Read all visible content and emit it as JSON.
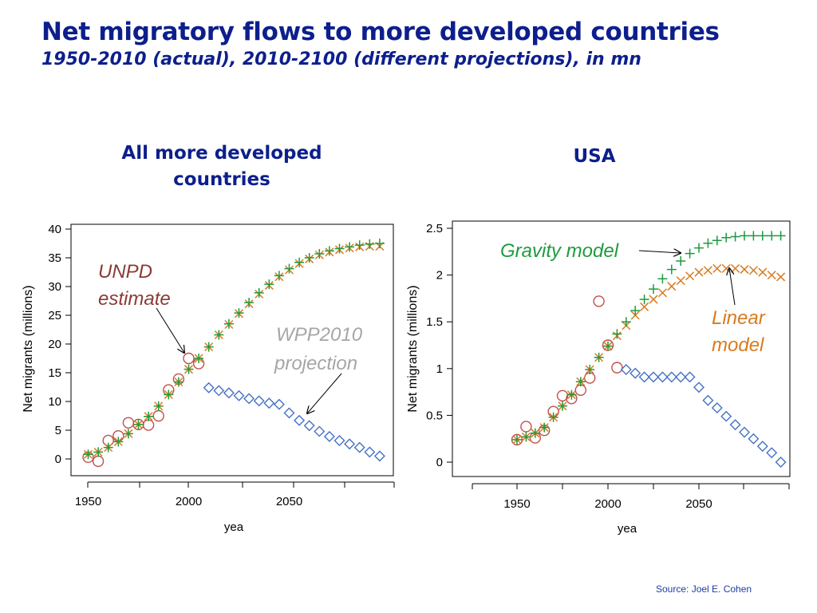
{
  "slide": {
    "title": "Net migratory flows to more developed countries",
    "subtitle": "1950-2010 (actual), 2010-2100 (different projections), in mn",
    "source": "Source: Joel E. Cohen",
    "colors": {
      "title": "#0d1f8c",
      "unpd": "#c0504d",
      "wpp": "#4472c4",
      "gravity": "#1e9b3c",
      "linear": "#d97a1e"
    }
  },
  "chart_data": [
    {
      "type": "scatter",
      "title": "All more developed countries",
      "xlabel": "yea",
      "ylabel": "Net migrants (millions)",
      "xlim": [
        1945,
        2097
      ],
      "ylim": [
        0,
        40
      ],
      "xticks": [
        1950,
        2000,
        2050
      ],
      "yticks": [
        0,
        5,
        10,
        15,
        20,
        25,
        30,
        35,
        40
      ],
      "annotations": [
        {
          "text": "UNPD",
          "color": "#8b3a36"
        },
        {
          "text": "estimate",
          "color": "#8b3a36"
        },
        {
          "text": "WPP2010",
          "color": "#a6a6a6"
        },
        {
          "text": "projection",
          "color": "#a6a6a6"
        }
      ],
      "series": [
        {
          "marker": "circle",
          "color": "#c0504d",
          "x": [
            1950,
            1955,
            1960,
            1965,
            1970,
            1975,
            1980,
            1985,
            1990,
            1995,
            2000,
            2005
          ],
          "y": [
            0.3,
            -0.4,
            3.2,
            4.0,
            6.3,
            6.0,
            5.9,
            7.5,
            12.0,
            13.9,
            17.5,
            16.6
          ]
        },
        {
          "marker": "cross",
          "color": "#d97a1e",
          "x": [
            1950,
            1955,
            1960,
            1965,
            1970,
            1975,
            1980,
            1985,
            1990,
            1995,
            2000,
            2005,
            2010,
            2015,
            2020,
            2025,
            2030,
            2035,
            2040,
            2045,
            2050,
            2055,
            2060,
            2065,
            2070,
            2075,
            2080,
            2085,
            2090,
            2095
          ],
          "y": [
            0.8,
            1.2,
            2.0,
            3.0,
            4.4,
            6.0,
            7.4,
            9.2,
            11.2,
            13.4,
            15.6,
            17.5,
            19.5,
            21.6,
            23.4,
            25.3,
            27.0,
            28.7,
            30.2,
            31.7,
            32.9,
            34.0,
            34.8,
            35.5,
            36.0,
            36.4,
            36.7,
            36.9,
            37.0,
            37.0
          ]
        },
        {
          "marker": "plus",
          "color": "#1e9b3c",
          "x": [
            1950,
            1955,
            1960,
            1965,
            1970,
            1975,
            1980,
            1985,
            1990,
            1995,
            2000,
            2005,
            2010,
            2015,
            2020,
            2025,
            2030,
            2035,
            2040,
            2045,
            2050,
            2055,
            2060,
            2065,
            2070,
            2075,
            2080,
            2085,
            2090,
            2095
          ],
          "y": [
            0.8,
            1.2,
            2.0,
            3.0,
            4.4,
            6.0,
            7.4,
            9.2,
            11.2,
            13.4,
            15.6,
            17.5,
            19.5,
            21.6,
            23.5,
            25.4,
            27.2,
            28.9,
            30.4,
            31.9,
            33.1,
            34.2,
            35.0,
            35.7,
            36.2,
            36.6,
            36.9,
            37.2,
            37.4,
            37.5
          ]
        },
        {
          "marker": "diamond",
          "color": "#4472c4",
          "x": [
            2010,
            2015,
            2020,
            2025,
            2030,
            2035,
            2040,
            2045,
            2050,
            2055,
            2060,
            2065,
            2070,
            2075,
            2080,
            2085,
            2090,
            2095
          ],
          "y": [
            12.4,
            11.9,
            11.5,
            11.0,
            10.5,
            10.1,
            9.7,
            9.5,
            8.0,
            6.7,
            5.8,
            4.8,
            3.9,
            3.2,
            2.6,
            2.0,
            1.2,
            0.5
          ]
        }
      ]
    },
    {
      "type": "scatter",
      "title": "USA",
      "xlabel": "yea",
      "ylabel": "Net migrants (millions)",
      "xlim": [
        1926,
        2100
      ],
      "ylim": [
        -0.05,
        2.5
      ],
      "xticks": [
        1950,
        2000,
        2050
      ],
      "yticks": [
        0,
        0.5,
        1,
        1.5,
        2,
        2.5
      ],
      "annotations": [
        {
          "text": "Gravity model",
          "color": "#1e9b3c"
        },
        {
          "text": "Linear",
          "color": "#d97a1e"
        },
        {
          "text": "model",
          "color": "#d97a1e"
        }
      ],
      "series": [
        {
          "marker": "circle",
          "color": "#c0504d",
          "x": [
            1950,
            1955,
            1960,
            1965,
            1970,
            1975,
            1980,
            1985,
            1990,
            1995,
            2000,
            2005
          ],
          "y": [
            0.24,
            0.38,
            0.26,
            0.34,
            0.54,
            0.71,
            0.68,
            0.77,
            0.9,
            1.72,
            1.25,
            1.01
          ]
        },
        {
          "marker": "cross",
          "color": "#d97a1e",
          "x": [
            1950,
            1955,
            1960,
            1965,
            1970,
            1975,
            1980,
            1985,
            1990,
            1995,
            2000,
            2005,
            2010,
            2015,
            2020,
            2025,
            2030,
            2035,
            2040,
            2045,
            2050,
            2055,
            2060,
            2065,
            2070,
            2075,
            2080,
            2085,
            2090,
            2095
          ],
          "y": [
            0.24,
            0.27,
            0.31,
            0.37,
            0.48,
            0.6,
            0.72,
            0.86,
            0.99,
            1.12,
            1.24,
            1.35,
            1.46,
            1.57,
            1.66,
            1.74,
            1.81,
            1.88,
            1.94,
            1.99,
            2.03,
            2.05,
            2.07,
            2.07,
            2.07,
            2.06,
            2.05,
            2.03,
            2.0,
            1.98
          ]
        },
        {
          "marker": "plus",
          "color": "#1e9b3c",
          "x": [
            1950,
            1955,
            1960,
            1965,
            1970,
            1975,
            1980,
            1985,
            1990,
            1995,
            2000,
            2005,
            2010,
            2015,
            2020,
            2025,
            2030,
            2035,
            2040,
            2045,
            2050,
            2055,
            2060,
            2065,
            2070,
            2075,
            2080,
            2085,
            2090,
            2095
          ],
          "y": [
            0.24,
            0.27,
            0.31,
            0.37,
            0.48,
            0.6,
            0.72,
            0.86,
            0.99,
            1.12,
            1.24,
            1.37,
            1.5,
            1.62,
            1.74,
            1.85,
            1.96,
            2.06,
            2.15,
            2.23,
            2.29,
            2.34,
            2.37,
            2.4,
            2.41,
            2.42,
            2.42,
            2.42,
            2.42,
            2.42
          ]
        },
        {
          "marker": "diamond",
          "color": "#4472c4",
          "x": [
            2010,
            2015,
            2020,
            2025,
            2030,
            2035,
            2040,
            2045,
            2050,
            2055,
            2060,
            2065,
            2070,
            2075,
            2080,
            2085,
            2090,
            2095
          ],
          "y": [
            0.99,
            0.95,
            0.91,
            0.91,
            0.91,
            0.91,
            0.91,
            0.91,
            0.8,
            0.66,
            0.58,
            0.49,
            0.4,
            0.32,
            0.25,
            0.17,
            0.1,
            0.0
          ]
        }
      ]
    }
  ]
}
